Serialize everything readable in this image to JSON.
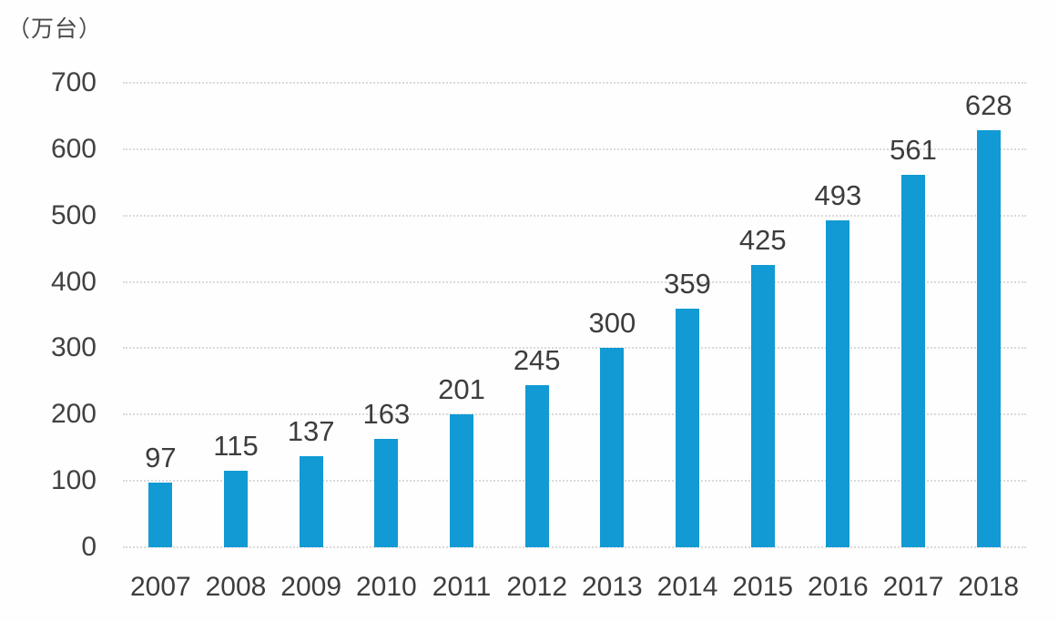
{
  "chart_data": {
    "type": "bar",
    "title": "",
    "unit_label": "（万台）",
    "categories": [
      "2007",
      "2008",
      "2009",
      "2010",
      "2011",
      "2012",
      "2013",
      "2014",
      "2015",
      "2016",
      "2017",
      "2018"
    ],
    "values": [
      97,
      115,
      137,
      163,
      201,
      245,
      300,
      359,
      425,
      493,
      561,
      628
    ],
    "yticks": [
      0,
      100,
      200,
      300,
      400,
      500,
      600,
      700
    ],
    "ylim": [
      0,
      700
    ],
    "xlabel": "",
    "ylabel": "（万台）",
    "grid": "horizontal-dotted",
    "legend_position": "none",
    "bar_color": "#119ad4",
    "label_color": "#3d3d3d",
    "axis_text_color": "#414141",
    "grid_color": "#dadada",
    "background_color": "#fefefe"
  }
}
